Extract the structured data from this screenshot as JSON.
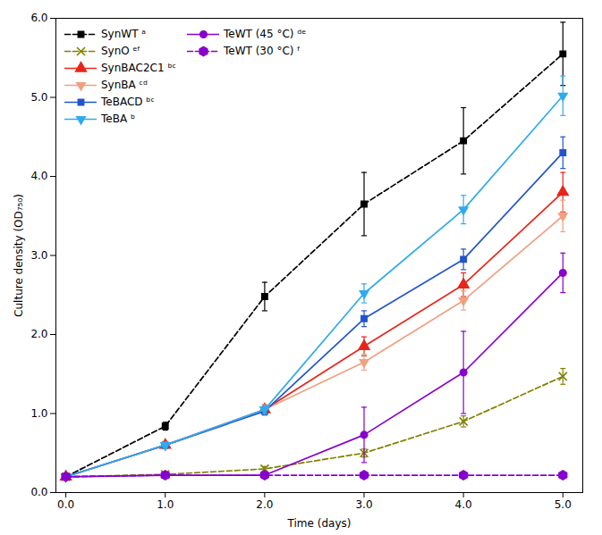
{
  "chart_data": {
    "type": "line",
    "xlabel": "Time (days)",
    "ylabel": "Culture density (OD₇₅₀)",
    "xlim": [
      -0.1,
      5.2
    ],
    "ylim": [
      0,
      6
    ],
    "xticks": [
      0,
      1,
      2,
      3,
      4,
      5
    ],
    "yticks": [
      0,
      1,
      2,
      3,
      4,
      5,
      6
    ],
    "grid": false,
    "legend": "upper left",
    "x": [
      0,
      1,
      2,
      3,
      4,
      5
    ],
    "series": [
      {
        "name": "SynWT ᵃ",
        "color": "#000000",
        "marker": "square",
        "line_style": "dashed",
        "values": [
          0.2,
          0.84,
          2.48,
          3.65,
          4.45,
          5.55
        ],
        "yerr": [
          0.02,
          0.05,
          0.18,
          0.4,
          0.42,
          0.4
        ]
      },
      {
        "name": "SynO ᵉᶠ",
        "color": "#808000",
        "marker": "x",
        "line_style": "dashed",
        "values": [
          0.2,
          0.23,
          0.3,
          0.5,
          0.9,
          1.47
        ],
        "yerr": [
          0.02,
          0.02,
          0.03,
          0.05,
          0.07,
          0.1
        ]
      },
      {
        "name": "SynBAC2C1 ᵇᶜ",
        "color": "#e8251a",
        "marker": "triangle-up",
        "line_style": "solid",
        "values": [
          0.2,
          0.6,
          1.05,
          1.85,
          2.63,
          3.8
        ],
        "yerr": [
          0.02,
          0.04,
          0.06,
          0.12,
          0.15,
          0.25
        ]
      },
      {
        "name": "SynBA ᶜᵈ",
        "color": "#F0A080",
        "marker": "triangle-down",
        "line_style": "solid",
        "values": [
          0.2,
          0.6,
          1.05,
          1.65,
          2.43,
          3.5
        ],
        "yerr": [
          0.02,
          0.04,
          0.06,
          0.1,
          0.12,
          0.2
        ]
      },
      {
        "name": "TeBACD ᵇᶜ",
        "color": "#2255cc",
        "marker": "square",
        "line_style": "solid",
        "values": [
          0.2,
          0.6,
          1.03,
          2.2,
          2.95,
          4.3
        ],
        "yerr": [
          0.02,
          0.04,
          0.05,
          0.1,
          0.13,
          0.2
        ]
      },
      {
        "name": "TeBA ᵇ",
        "color": "#30aaee",
        "marker": "triangle-down",
        "line_style": "solid",
        "values": [
          0.2,
          0.6,
          1.05,
          2.52,
          3.58,
          5.02
        ],
        "yerr": [
          0.02,
          0.04,
          0.05,
          0.12,
          0.18,
          0.25
        ]
      },
      {
        "name": "TeWT (45 °C) ᵈᵉ",
        "color": "#8800cc",
        "marker": "circle",
        "line_style": "solid",
        "values": [
          0.2,
          0.22,
          0.22,
          0.73,
          1.52,
          2.78
        ],
        "yerr": [
          0.02,
          0.02,
          0.02,
          0.35,
          0.52,
          0.25
        ]
      },
      {
        "name": "TeWT (30 °C) ᶠ",
        "color": "#8800cc",
        "marker": "hexagon",
        "line_style": "dashed",
        "values": [
          0.2,
          0.22,
          0.22,
          0.22,
          0.22,
          0.22
        ],
        "yerr": [
          0.02,
          0.02,
          0.02,
          0.02,
          0.02,
          0.02
        ]
      }
    ]
  }
}
